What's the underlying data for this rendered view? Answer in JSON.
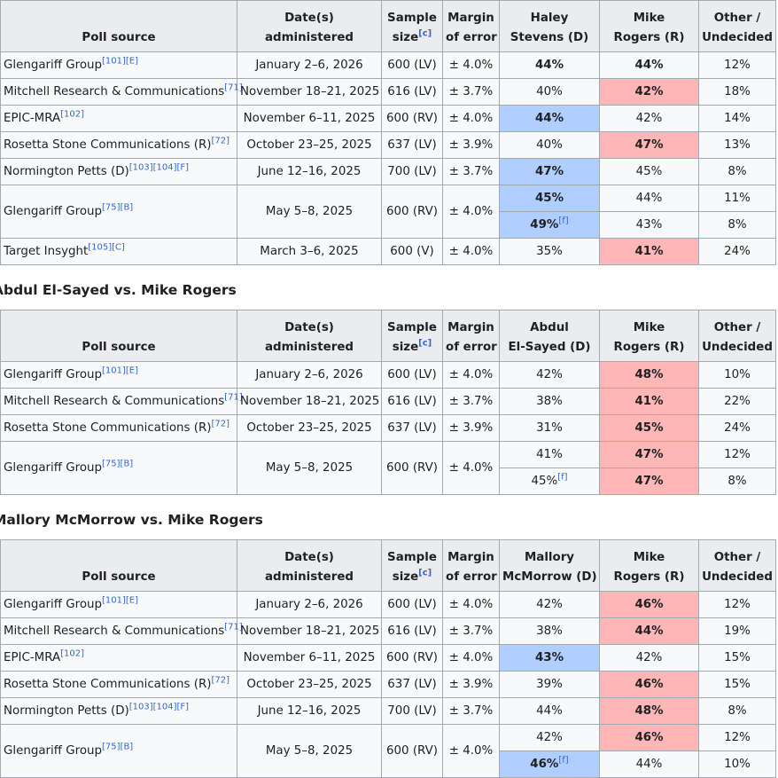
{
  "colors": {
    "d": "#b0ceff",
    "r": "#ffb6b6"
  },
  "sections": [
    {
      "table": {
        "headers": [
          {
            "lines": [
              "Poll source"
            ]
          },
          {
            "lines": [
              "Date(s)",
              "administered"
            ]
          },
          {
            "lines": [
              "Sample",
              "size"
            ],
            "note": "[c]"
          },
          {
            "lines": [
              "Margin",
              "of error"
            ]
          },
          {
            "lines": [
              "Haley",
              "Stevens (D)"
            ]
          },
          {
            "lines": [
              "Mike",
              "Rogers (R)"
            ]
          },
          {
            "lines": [
              "Other /",
              "Undecided"
            ]
          }
        ],
        "rows": [
          {
            "source": "Glengariff Group",
            "refs": [
              "[101]",
              "[E]"
            ],
            "date": "January 2–6, 2026",
            "sample": "600 (LV)",
            "margin": "± 4.0%",
            "results": [
              {
                "d": "44%",
                "r": "44%",
                "other": "12%",
                "bold": [
                  "d",
                  "r"
                ],
                "highlight": null
              }
            ]
          },
          {
            "source": "Mitchell Research & Communications",
            "refs": [
              "[71]"
            ],
            "date": "November 18–21, 2025",
            "sample": "616 (LV)",
            "margin": "± 3.7%",
            "results": [
              {
                "d": "40%",
                "r": "42%",
                "other": "18%",
                "bold": [
                  "r"
                ],
                "highlight": "r"
              }
            ]
          },
          {
            "source": "EPIC-MRA",
            "refs": [
              "[102]"
            ],
            "date": "November 6–11, 2025",
            "sample": "600 (RV)",
            "margin": "± 4.0%",
            "results": [
              {
                "d": "44%",
                "r": "42%",
                "other": "14%",
                "bold": [
                  "d"
                ],
                "highlight": "d"
              }
            ]
          },
          {
            "source": "Rosetta Stone Communications (R)",
            "refs": [
              "[72]"
            ],
            "date": "October 23–25, 2025",
            "sample": "637 (LV)",
            "margin": "± 3.9%",
            "results": [
              {
                "d": "40%",
                "r": "47%",
                "other": "13%",
                "bold": [
                  "r"
                ],
                "highlight": "r"
              }
            ]
          },
          {
            "source": "Normington Petts (D)",
            "refs": [
              "[103]",
              "[104]",
              "[F]"
            ],
            "date": "June 12–16, 2025",
            "sample": "700 (LV)",
            "margin": "± 3.7%",
            "results": [
              {
                "d": "47%",
                "r": "45%",
                "other": "8%",
                "bold": [
                  "d"
                ],
                "highlight": "d"
              }
            ]
          },
          {
            "source": "Glengariff Group",
            "refs": [
              "[75]",
              "[B]"
            ],
            "date": "May 5–8, 2025",
            "sample": "600 (RV)",
            "margin": "± 4.0%",
            "results": [
              {
                "d": "45%",
                "r": "44%",
                "other": "11%",
                "bold": [
                  "d"
                ],
                "highlight": "d"
              },
              {
                "d": "49%",
                "d_note": "[f]",
                "r": "43%",
                "other": "8%",
                "bold": [
                  "d"
                ],
                "highlight": "d"
              }
            ]
          },
          {
            "source": "Target Insyght",
            "refs": [
              "[105]",
              "[C]"
            ],
            "date": "March 3–6, 2025",
            "sample": "600 (V)",
            "margin": "± 4.0%",
            "results": [
              {
                "d": "35%",
                "r": "41%",
                "other": "24%",
                "bold": [
                  "r"
                ],
                "highlight": "r"
              }
            ]
          }
        ]
      }
    },
    {
      "heading": "Abdul El-Sayed vs. Mike Rogers",
      "table": {
        "headers": [
          {
            "lines": [
              "Poll source"
            ]
          },
          {
            "lines": [
              "Date(s)",
              "administered"
            ]
          },
          {
            "lines": [
              "Sample",
              "size"
            ],
            "note": "[c]"
          },
          {
            "lines": [
              "Margin",
              "of error"
            ]
          },
          {
            "lines": [
              "Abdul",
              "El-Sayed (D)"
            ]
          },
          {
            "lines": [
              "Mike",
              "Rogers (R)"
            ]
          },
          {
            "lines": [
              "Other /",
              "Undecided"
            ]
          }
        ],
        "rows": [
          {
            "source": "Glengariff Group",
            "refs": [
              "[101]",
              "[E]"
            ],
            "date": "January 2–6, 2026",
            "sample": "600 (LV)",
            "margin": "± 4.0%",
            "results": [
              {
                "d": "42%",
                "r": "48%",
                "other": "10%",
                "bold": [
                  "r"
                ],
                "highlight": "r"
              }
            ]
          },
          {
            "source": "Mitchell Research & Communications",
            "refs": [
              "[71]"
            ],
            "date": "November 18–21, 2025",
            "sample": "616 (LV)",
            "margin": "± 3.7%",
            "results": [
              {
                "d": "38%",
                "r": "41%",
                "other": "22%",
                "bold": [
                  "r"
                ],
                "highlight": "r"
              }
            ]
          },
          {
            "source": "Rosetta Stone Communications (R)",
            "refs": [
              "[72]"
            ],
            "date": "October 23–25, 2025",
            "sample": "637 (LV)",
            "margin": "± 3.9%",
            "results": [
              {
                "d": "31%",
                "r": "45%",
                "other": "24%",
                "bold": [
                  "r"
                ],
                "highlight": "r"
              }
            ]
          },
          {
            "source": "Glengariff Group",
            "refs": [
              "[75]",
              "[B]"
            ],
            "date": "May 5–8, 2025",
            "sample": "600 (RV)",
            "margin": "± 4.0%",
            "results": [
              {
                "d": "41%",
                "r": "47%",
                "other": "12%",
                "bold": [
                  "r"
                ],
                "highlight": "r"
              },
              {
                "d": "45%",
                "d_note": "[f]",
                "r": "47%",
                "other": "8%",
                "bold": [
                  "r"
                ],
                "highlight": "r"
              }
            ]
          }
        ]
      }
    },
    {
      "heading": "Mallory McMorrow vs. Mike Rogers",
      "table": {
        "headers": [
          {
            "lines": [
              "Poll source"
            ]
          },
          {
            "lines": [
              "Date(s)",
              "administered"
            ]
          },
          {
            "lines": [
              "Sample",
              "size"
            ],
            "note": "[c]"
          },
          {
            "lines": [
              "Margin",
              "of error"
            ]
          },
          {
            "lines": [
              "Mallory",
              "McMorrow (D)"
            ]
          },
          {
            "lines": [
              "Mike",
              "Rogers (R)"
            ]
          },
          {
            "lines": [
              "Other /",
              "Undecided"
            ]
          }
        ],
        "rows": [
          {
            "source": "Glengariff Group",
            "refs": [
              "[101]",
              "[E]"
            ],
            "date": "January 2–6, 2026",
            "sample": "600 (LV)",
            "margin": "± 4.0%",
            "results": [
              {
                "d": "42%",
                "r": "46%",
                "other": "12%",
                "bold": [
                  "r"
                ],
                "highlight": "r"
              }
            ]
          },
          {
            "source": "Mitchell Research & Communications",
            "refs": [
              "[71]"
            ],
            "date": "November 18–21, 2025",
            "sample": "616 (LV)",
            "margin": "± 3.7%",
            "results": [
              {
                "d": "38%",
                "r": "44%",
                "other": "19%",
                "bold": [
                  "r"
                ],
                "highlight": "r"
              }
            ]
          },
          {
            "source": "EPIC-MRA",
            "refs": [
              "[102]"
            ],
            "date": "November 6–11, 2025",
            "sample": "600 (RV)",
            "margin": "± 4.0%",
            "results": [
              {
                "d": "43%",
                "r": "42%",
                "other": "15%",
                "bold": [
                  "d"
                ],
                "highlight": "d"
              }
            ]
          },
          {
            "source": "Rosetta Stone Communications (R)",
            "refs": [
              "[72]"
            ],
            "date": "October 23–25, 2025",
            "sample": "637 (LV)",
            "margin": "± 3.9%",
            "results": [
              {
                "d": "39%",
                "r": "46%",
                "other": "15%",
                "bold": [
                  "r"
                ],
                "highlight": "r"
              }
            ]
          },
          {
            "source": "Normington Petts (D)",
            "refs": [
              "[103]",
              "[104]",
              "[F]"
            ],
            "date": "June 12–16, 2025",
            "sample": "700 (LV)",
            "margin": "± 3.7%",
            "results": [
              {
                "d": "44%",
                "r": "48%",
                "other": "8%",
                "bold": [
                  "r"
                ],
                "highlight": "r"
              }
            ]
          },
          {
            "source": "Glengariff Group",
            "refs": [
              "[75]",
              "[B]"
            ],
            "date": "May 5–8, 2025",
            "sample": "600 (RV)",
            "margin": "± 4.0%",
            "results": [
              {
                "d": "42%",
                "r": "46%",
                "other": "12%",
                "bold": [
                  "r"
                ],
                "highlight": "r"
              },
              {
                "d": "46%",
                "d_note": "[f]",
                "r": "44%",
                "other": "10%",
                "bold": [
                  "d"
                ],
                "highlight": "d"
              }
            ]
          }
        ]
      }
    }
  ]
}
